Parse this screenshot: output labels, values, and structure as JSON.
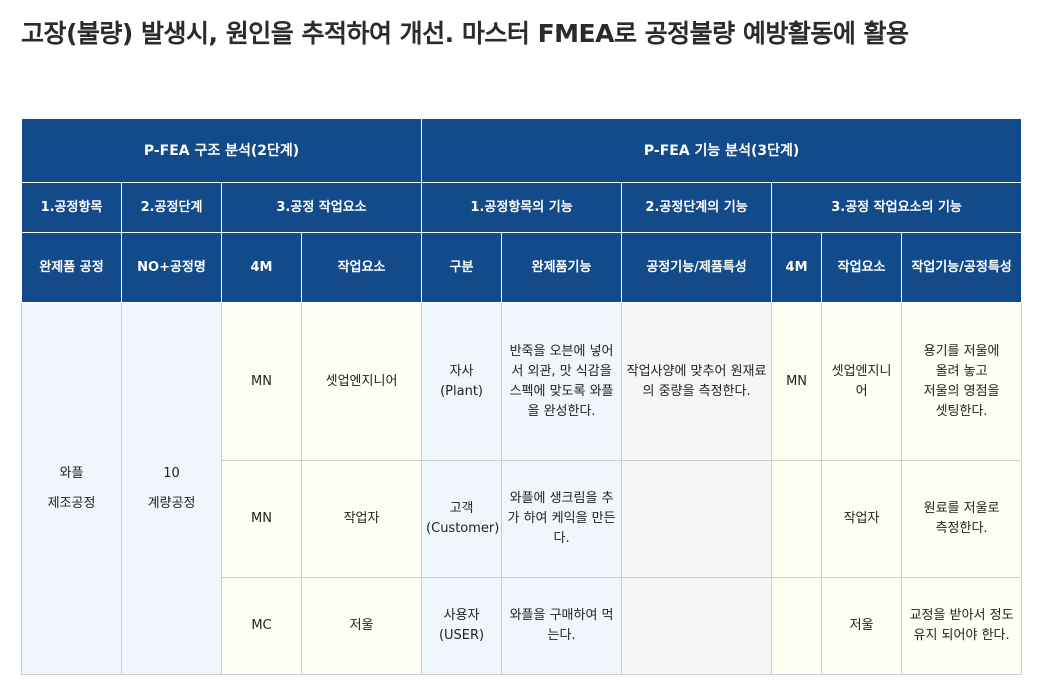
{
  "page": {
    "title": "고장(불량) 발생시, 원인을 추적하여 개선. 마스터 FMEA로 공정불량 예방활동에 활용"
  },
  "table": {
    "group_headers": {
      "structure": "P-FEA 구조 분석(2단계)",
      "function": "P-FEA 기능 분석(3단계)"
    },
    "sub_headers": {
      "process_item": "1.공정항목",
      "process_step": "2.공정단계",
      "work_element": "3.공정 작업요소",
      "process_item_function": "1.공정항목의 기능",
      "process_step_function": "2.공정단계의 기능",
      "work_element_function": "3.공정 작업요소의 기능"
    },
    "columns": {
      "finished_process": "완제품 공정",
      "no_process_name": "NO+공정명",
      "fourm_a": "4M",
      "work_element": "작업요소",
      "category": "구분",
      "finished_function": "완제품기능",
      "process_function": "공정기능/제품특성",
      "fourm_b": "4M",
      "work_element_b": "작업요소",
      "work_function": "작업기능/공정특성"
    },
    "merged": {
      "finished_process": "와플\n제조공정",
      "process_step": "10\n계량공정",
      "process_function_row1": "작업사양에 맞추어 원재료의 중량을 측정한다."
    },
    "rows": [
      {
        "fourm": "MN",
        "work_element": "셋업엔지니어",
        "category": "자사\n(Plant)",
        "finished_function": "반죽을 오븐에 넣어서 외관, 맛 식감을 스펙에 맞도록 와플을 완성한다.",
        "fourm_b": "MN",
        "work_element_b": "셋업엔지니어",
        "work_function": "용기를 저울에\n올려 놓고\n저울의 영점을\n셋팅한다."
      },
      {
        "fourm": "MN",
        "work_element": "작업자",
        "category": "고객\n(Customer)",
        "finished_function": "와플에 생크림을 추가 하여 케익을 만든다.",
        "fourm_b": "",
        "work_element_b": "작업자",
        "work_function": "원료를 저울로\n측정한다."
      },
      {
        "fourm": "MC",
        "work_element": "저울",
        "category": "사용자\n(USER)",
        "finished_function": "와플을 구매하여 먹는다.",
        "fourm_b": "",
        "work_element_b": "저울",
        "work_function": "교정을 받아서 정도\n유지 되어야 한다."
      }
    ]
  }
}
